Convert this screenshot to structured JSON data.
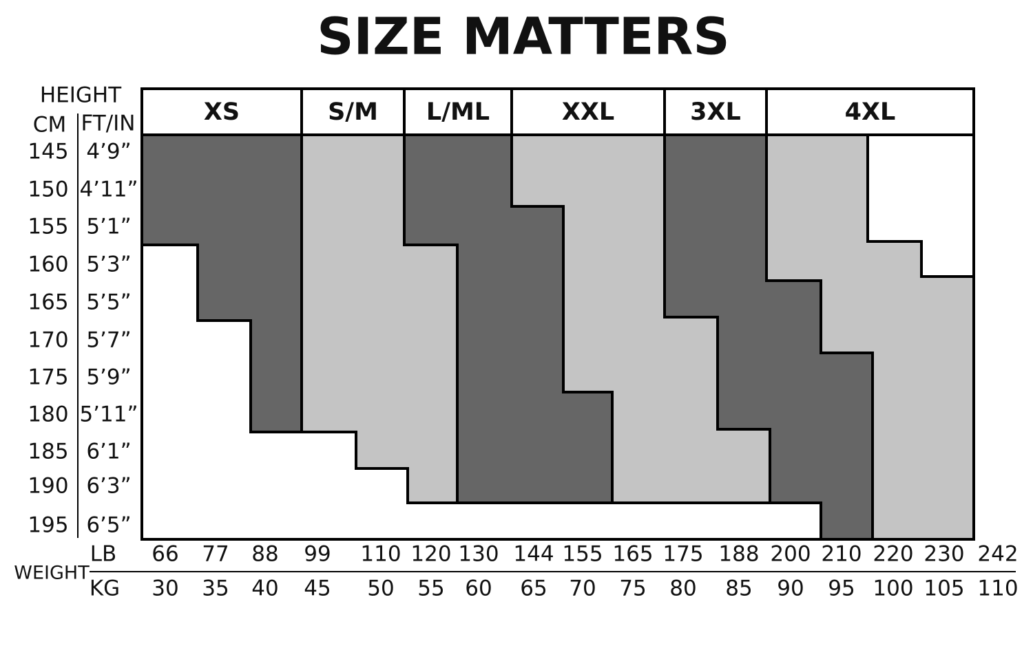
{
  "title": "SIZE MATTERS",
  "sizes": [
    "XS",
    "S/M",
    "L/ML",
    "XXL",
    "3XL",
    "4XL"
  ],
  "height": {
    "label": "HEIGHT",
    "cm_label": "CM",
    "ftin_label": "FT/IN",
    "cm": [
      145,
      150,
      155,
      160,
      165,
      170,
      175,
      180,
      185,
      190,
      195
    ],
    "ftin": [
      "4’9”",
      "4’11”",
      "5’1”",
      "5’3”",
      "5’5”",
      "5’7”",
      "5’9”",
      "5’11”",
      "6’1”",
      "6’3”",
      "6’5”"
    ]
  },
  "weight": {
    "label": "WEIGHT",
    "lb_label": "LB",
    "kg_label": "KG",
    "lb": [
      66,
      77,
      88,
      99,
      110,
      120,
      130,
      144,
      155,
      165,
      175,
      188,
      200,
      210,
      220,
      230,
      242
    ],
    "kg": [
      30,
      35,
      40,
      45,
      50,
      55,
      60,
      65,
      70,
      75,
      80,
      85,
      90,
      95,
      100,
      105,
      110
    ]
  }
}
